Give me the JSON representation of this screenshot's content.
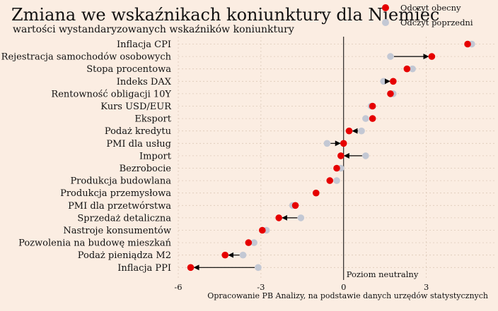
{
  "header": {
    "title": "Zmiana we wskaźnikach koniunktury dla Niemiec",
    "subtitle": "wartości wystandaryzowanych wskaźników koniunktury"
  },
  "legend": {
    "items": [
      {
        "label": "Odczyt obecny",
        "color": "#e60000"
      },
      {
        "label": "Odczyt poprzedni",
        "color": "#c3c8d4"
      }
    ]
  },
  "footer": {
    "source": "Opracowanie PB Analizy, na podstawie danych urzędów statystycznych"
  },
  "chart_data": {
    "type": "dumbbell",
    "title": "Zmiana we wskaźnikach koniunktury dla Niemiec",
    "subtitle": "wartości wystandaryzowanych wskaźników koniunktury",
    "xlim": [
      -6,
      5.5
    ],
    "xticks": [
      -6,
      -3,
      0,
      3
    ],
    "grid": true,
    "legend_position": "top-right",
    "reference_line": {
      "x": 0,
      "label": "Poziom neutralny"
    },
    "categories": [
      "Inflacja CPI",
      "Rejestracja samochodów osobowych",
      "Stopa procentowa",
      "Indeks DAX",
      "Rentowność obligacji 10Y",
      "Kurs USD/EUR",
      "Eksport",
      "Podaż kredytu",
      "PMI dla usług",
      "Import",
      "Bezrobocie",
      "Produkcja budowlana",
      "Produkcja przemysłowa",
      "PMI dla przetwórstwa",
      "Sprzedaż detaliczna",
      "Nastroje konsumentów",
      "Pozwolenia na budowę mieszkań",
      "Podaż pieniądza M2",
      "Inflacja PPI"
    ],
    "series": [
      {
        "name": "Odczyt obecny",
        "color": "#e60000",
        "values": [
          4.5,
          3.2,
          2.3,
          1.8,
          1.7,
          1.05,
          1.05,
          0.2,
          0.0,
          -0.1,
          -0.25,
          -0.5,
          -1.0,
          -1.75,
          -2.35,
          -2.95,
          -3.45,
          -4.3,
          -5.55
        ]
      },
      {
        "name": "Odczyt poprzedni",
        "color": "#c3c8d4",
        "values": [
          4.65,
          1.7,
          2.5,
          1.45,
          1.8,
          1.0,
          0.8,
          0.65,
          -0.6,
          0.8,
          -0.1,
          -0.25,
          -1.0,
          -1.85,
          -1.55,
          -2.8,
          -3.25,
          -3.65,
          -3.1
        ]
      }
    ]
  }
}
